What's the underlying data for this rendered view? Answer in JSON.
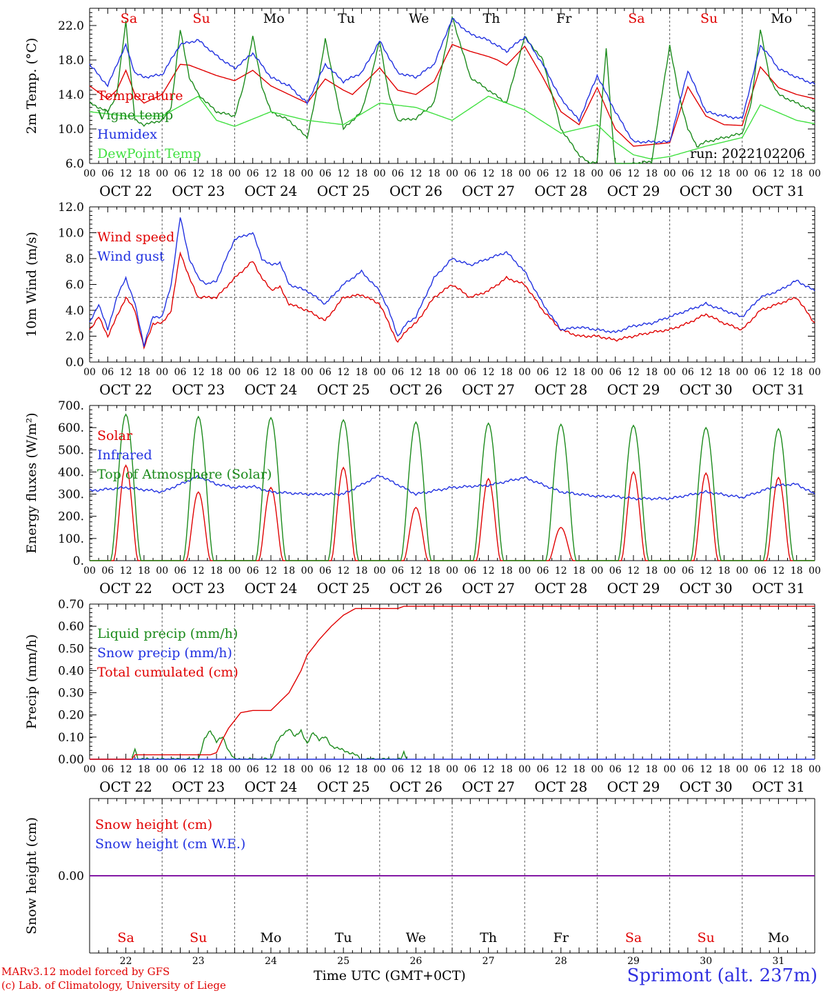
{
  "station": "Sprimont (alt. 237m)",
  "credits": [
    "MARv3.12 model forced by GFS",
    "(c) Lab. of Climatology, University of Liege"
  ],
  "time_axis_title": "Time UTC (GMT+0CT)",
  "run_label": "run: 2022102206",
  "colors": {
    "red": "#e00000",
    "green": "#1a8a1a",
    "blue": "#2030e0",
    "lightgreen": "#40e040",
    "purple": "#8000a0",
    "weekend": "#e00000"
  },
  "days": [
    {
      "abbr": "Sa",
      "date": "OCT 22",
      "num": "22",
      "weekend": true
    },
    {
      "abbr": "Su",
      "date": "OCT 23",
      "num": "23",
      "weekend": true
    },
    {
      "abbr": "Mo",
      "date": "OCT 24",
      "num": "24",
      "weekend": false
    },
    {
      "abbr": "Tu",
      "date": "OCT 25",
      "num": "25",
      "weekend": false
    },
    {
      "abbr": "We",
      "date": "OCT 26",
      "num": "26",
      "weekend": false
    },
    {
      "abbr": "Th",
      "date": "OCT 27",
      "num": "27",
      "weekend": false
    },
    {
      "abbr": "Fr",
      "date": "OCT 28",
      "num": "28",
      "weekend": false
    },
    {
      "abbr": "Sa",
      "date": "OCT 29",
      "num": "29",
      "weekend": true
    },
    {
      "abbr": "Su",
      "date": "OCT 30",
      "num": "30",
      "weekend": true
    },
    {
      "abbr": "Mo",
      "date": "OCT 31",
      "num": "31",
      "weekend": false
    }
  ],
  "hour_ticks": [
    "00",
    "06",
    "12",
    "18"
  ],
  "chart_data": [
    {
      "type": "line",
      "ylabel": "2m Temp. (°C)",
      "ylim": [
        6,
        24
      ],
      "yticks": [
        "6.0",
        "10.0",
        "14.0",
        "18.0",
        "22.0"
      ],
      "x_unit": "hours since 2022-10-22 00 UTC",
      "series": [
        {
          "name": "Temperature",
          "color": "red",
          "x": [
            0,
            6,
            9,
            12,
            15,
            18,
            24,
            30,
            33,
            36,
            42,
            48,
            54,
            60,
            66,
            72,
            78,
            84,
            87,
            90,
            96,
            102,
            108,
            114,
            120,
            126,
            132,
            135,
            138,
            144,
            150,
            156,
            162,
            168,
            174,
            180,
            186,
            192,
            198,
            204,
            207,
            210,
            216,
            222,
            225,
            228,
            234,
            240
          ],
          "y": [
            15,
            13.5,
            14.5,
            16.8,
            14,
            13,
            14,
            17.5,
            17.4,
            17,
            16.2,
            15.6,
            16.8,
            15,
            14,
            13,
            15.8,
            14.5,
            14,
            15,
            17.1,
            14.5,
            14,
            15.5,
            19.8,
            19,
            18.4,
            18,
            17.4,
            19.6,
            16,
            12,
            10.5,
            14.8,
            10,
            8,
            8.2,
            8.4,
            14.9,
            11.5,
            11,
            10.5,
            10.4,
            17.2,
            16,
            14.8,
            14,
            13.5
          ]
        },
        {
          "name": "Vigne temp",
          "color": "green",
          "x": [
            0,
            6,
            9,
            12,
            15,
            18,
            24,
            27,
            30,
            33,
            36,
            42,
            48,
            51,
            54,
            57,
            60,
            66,
            72,
            75,
            78,
            81,
            84,
            90,
            93,
            96,
            99,
            102,
            108,
            114,
            120,
            126,
            132,
            138,
            144,
            150,
            156,
            162,
            165,
            168,
            171,
            174,
            180,
            186,
            189,
            192,
            195,
            198,
            201,
            204,
            210,
            216,
            219,
            222,
            225,
            228,
            234,
            240
          ],
          "y": [
            13,
            12,
            14,
            22.5,
            11,
            10.5,
            11,
            12.5,
            21.5,
            16,
            14,
            12,
            11.5,
            15,
            20.8,
            15,
            12,
            11,
            9,
            14,
            20.5,
            15,
            10,
            12,
            15.7,
            20.3,
            14,
            11,
            11.2,
            13,
            23,
            16,
            14.5,
            13,
            20.7,
            18,
            10,
            7,
            6.1,
            6.2,
            19.5,
            5,
            6,
            6.2,
            13,
            19.7,
            14,
            10,
            8,
            8.5,
            9,
            9.5,
            13,
            21.6,
            16,
            14,
            13,
            12
          ]
        },
        {
          "name": "Humidex",
          "color": "blue",
          "x": [
            0,
            6,
            9,
            12,
            15,
            18,
            24,
            30,
            36,
            42,
            48,
            54,
            60,
            66,
            72,
            78,
            84,
            90,
            96,
            102,
            108,
            114,
            120,
            126,
            132,
            138,
            144,
            150,
            156,
            162,
            168,
            174,
            180,
            186,
            192,
            198,
            204,
            210,
            216,
            222,
            225,
            228,
            234,
            240
          ],
          "y": [
            17.5,
            15,
            17.5,
            19.7,
            16.5,
            16,
            16.3,
            19.8,
            20.3,
            18.5,
            17,
            18.8,
            16,
            15,
            13,
            17.5,
            15.5,
            16.5,
            20.2,
            16.5,
            16,
            17.5,
            22.8,
            21,
            20.3,
            19,
            20.7,
            17.5,
            13.5,
            11,
            16.2,
            12,
            8.5,
            8.5,
            8.5,
            16.8,
            12,
            11.5,
            11.2,
            19.7,
            18.5,
            17,
            16,
            15.2
          ]
        },
        {
          "name": "DewPoint Temp",
          "color": "lightgreen",
          "x": [
            0,
            12,
            24,
            36,
            42,
            48,
            60,
            72,
            84,
            96,
            108,
            120,
            132,
            144,
            156,
            168,
            174,
            180,
            186,
            192,
            204,
            216,
            222,
            234,
            240
          ],
          "y": [
            12,
            11.5,
            11.5,
            13.8,
            11,
            10.3,
            12,
            11,
            10.5,
            13,
            12.5,
            11,
            13.8,
            12.2,
            9.5,
            10.5,
            8.5,
            7,
            6.5,
            6.8,
            8,
            9,
            12.8,
            11,
            10.6
          ]
        }
      ]
    },
    {
      "type": "line",
      "ylabel": "10m Wind (m/s)",
      "ylim": [
        0,
        12
      ],
      "yticks": [
        "0.0",
        "2.0",
        "4.0",
        "6.0",
        "8.0",
        "10.0",
        "12.0"
      ],
      "reference_line": 5,
      "x_unit": "hours since 2022-10-22 00 UTC",
      "series": [
        {
          "name": "Wind speed",
          "color": "red",
          "x": [
            0,
            3,
            6,
            9,
            12,
            15,
            18,
            21,
            24,
            27,
            30,
            33,
            36,
            39,
            42,
            48,
            54,
            57,
            60,
            63,
            66,
            72,
            78,
            84,
            90,
            96,
            99,
            102,
            105,
            108,
            114,
            120,
            126,
            132,
            138,
            144,
            150,
            156,
            162,
            168,
            174,
            180,
            186,
            192,
            198,
            204,
            210,
            216,
            222,
            228,
            234,
            240
          ],
          "y": [
            2.5,
            3.5,
            2,
            3.5,
            5,
            4,
            1.1,
            3,
            3,
            4,
            8.5,
            6.5,
            5,
            5,
            5,
            6.5,
            7.8,
            6.5,
            5.6,
            5.8,
            4.5,
            4,
            3.2,
            5,
            5.2,
            4.5,
            3,
            1.5,
            2.5,
            3,
            5,
            6,
            5,
            5.5,
            6.5,
            6,
            4,
            2.5,
            2,
            2,
            1.7,
            2,
            2.3,
            2.5,
            3,
            3.7,
            3,
            2.5,
            4,
            4.5,
            5,
            3
          ]
        },
        {
          "name": "Wind gust",
          "color": "blue",
          "x": [
            0,
            3,
            6,
            9,
            12,
            15,
            18,
            21,
            24,
            27,
            30,
            33,
            36,
            39,
            42,
            48,
            54,
            57,
            60,
            63,
            66,
            72,
            78,
            84,
            90,
            96,
            99,
            102,
            105,
            108,
            114,
            120,
            126,
            132,
            138,
            144,
            150,
            156,
            162,
            168,
            174,
            180,
            186,
            192,
            198,
            204,
            210,
            216,
            222,
            228,
            234,
            240
          ],
          "y": [
            3,
            4.5,
            2.5,
            5,
            6.5,
            4.5,
            1.3,
            3.5,
            3.5,
            6,
            11.2,
            8,
            6.5,
            6,
            6.3,
            9.5,
            10,
            8,
            7.5,
            7.7,
            6,
            5.5,
            4.5,
            6,
            7,
            5.5,
            4,
            2,
            3,
            3.5,
            6.5,
            8,
            7.5,
            8,
            8.5,
            7,
            4.5,
            2.5,
            2.7,
            2.5,
            2.3,
            2.8,
            3,
            3.5,
            4,
            4.5,
            4,
            3.5,
            5,
            5.5,
            6.3,
            5.5
          ]
        }
      ]
    },
    {
      "type": "line",
      "ylabel": "Energy fluxes (W/m²)",
      "ylim": [
        0,
        700
      ],
      "yticks": [
        "0.",
        "100.",
        "200.",
        "300.",
        "400.",
        "500.",
        "600.",
        "700."
      ],
      "x_unit": "hours since 2022-10-22 00 UTC",
      "series": [
        {
          "name": "Solar",
          "color": "red",
          "daily_peak": [
            430,
            310,
            330,
            420,
            240,
            370,
            150,
            400,
            395,
            375
          ]
        },
        {
          "name": "Infrared",
          "color": "blue",
          "x": [
            0,
            12,
            24,
            36,
            42,
            48,
            54,
            60,
            72,
            84,
            96,
            108,
            120,
            132,
            144,
            156,
            168,
            174,
            180,
            192,
            204,
            216,
            228,
            234,
            240
          ],
          "y": [
            315,
            330,
            310,
            380,
            345,
            330,
            335,
            310,
            300,
            300,
            385,
            300,
            330,
            340,
            375,
            310,
            290,
            290,
            280,
            280,
            310,
            285,
            340,
            345,
            300
          ]
        },
        {
          "name": "Top of Atmosphere (Solar)",
          "color": "green",
          "daily_peak": [
            660,
            650,
            645,
            635,
            625,
            620,
            615,
            610,
            600,
            595
          ]
        }
      ]
    },
    {
      "type": "line",
      "ylabel": "Precip (mm/h)",
      "ylim": [
        0,
        0.7
      ],
      "yticks": [
        "0.00",
        "0.10",
        "0.20",
        "0.30",
        "0.40",
        "0.50",
        "0.60",
        "0.70"
      ],
      "x_unit": "hours since 2022-10-22 00 UTC",
      "series": [
        {
          "name": "Liquid precip (mm/h)",
          "color": "green",
          "x": [
            14,
            15,
            16,
            36,
            38,
            40,
            42,
            44,
            46,
            48,
            60,
            62,
            64,
            66,
            68,
            70,
            72,
            74,
            76,
            78,
            80,
            82,
            84,
            86,
            88,
            90,
            103,
            104,
            105
          ],
          "y": [
            0,
            0.05,
            0,
            0,
            0.09,
            0.13,
            0.08,
            0.1,
            0.04,
            0,
            0,
            0.08,
            0.11,
            0.14,
            0.1,
            0.13,
            0.07,
            0.12,
            0.09,
            0.1,
            0.06,
            0.05,
            0.04,
            0.03,
            0.02,
            0,
            0,
            0.03,
            0
          ]
        },
        {
          "name": "Snow precip (mm/h)",
          "color": "blue",
          "x": [
            0,
            240
          ],
          "y": [
            0,
            0
          ]
        },
        {
          "name": "Total cumulated (cm)",
          "color": "red",
          "x": [
            0,
            14,
            15,
            40,
            42,
            44,
            46,
            50,
            54,
            60,
            66,
            70,
            72,
            76,
            80,
            84,
            88,
            90,
            102,
            104,
            106,
            240
          ],
          "y": [
            0,
            0,
            0.02,
            0.02,
            0.03,
            0.09,
            0.14,
            0.21,
            0.22,
            0.22,
            0.3,
            0.4,
            0.47,
            0.54,
            0.6,
            0.65,
            0.68,
            0.68,
            0.68,
            0.69,
            0.69,
            0.69
          ]
        }
      ]
    },
    {
      "type": "line",
      "ylabel": "Snow height (cm)",
      "yticks": [
        "0.00"
      ],
      "x_unit": "hours since 2022-10-22 00 UTC",
      "series": [
        {
          "name": "Snow height (cm)",
          "color": "red",
          "x": [
            0,
            240
          ],
          "y": [
            0,
            0
          ]
        },
        {
          "name": "Snow height (cm W.E.)",
          "color": "blue",
          "x": [
            0,
            240
          ],
          "y": [
            0,
            0
          ]
        }
      ]
    }
  ]
}
